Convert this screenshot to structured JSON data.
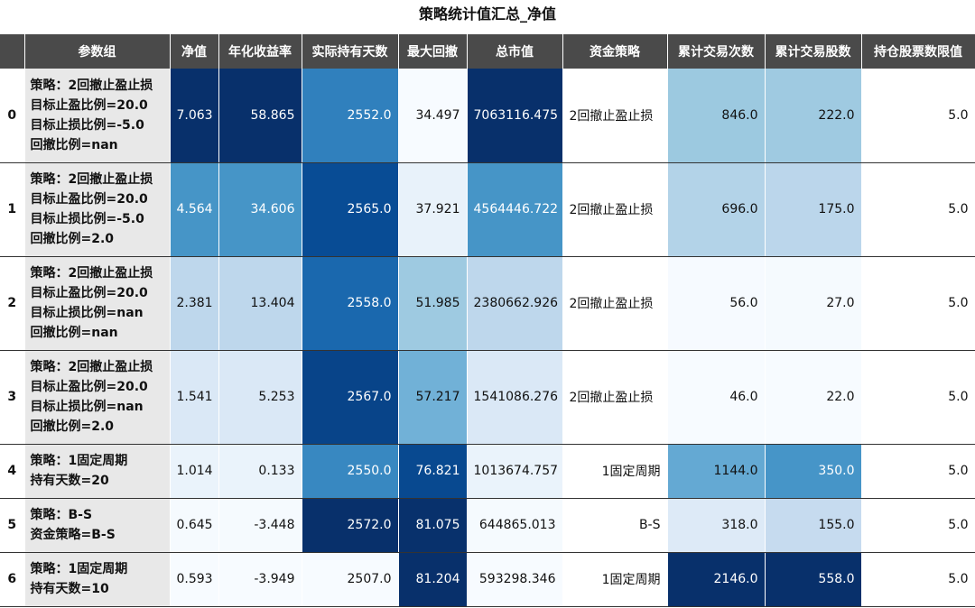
{
  "title": "策略统计值汇总_净值",
  "headers": [
    "",
    "参数组",
    "净值",
    "年化收益率",
    "实际持有天数",
    "最大回撤",
    "总市值",
    "资金策略",
    "累计交易次数",
    "累计交易股数",
    "持仓股票数限值"
  ],
  "rows": [
    {
      "index": "0",
      "params": [
        "策略：2回撤止盈止损",
        "目标止盈比例=20.0",
        "目标止损比例=-5.0",
        "回撤比例=nan"
      ],
      "cells": [
        "7.063",
        "58.865",
        "2552.0",
        "34.497",
        "7063116.475",
        "2回撤止盈止损",
        "846.0",
        "222.0",
        "5.0"
      ]
    },
    {
      "index": "1",
      "params": [
        "策略：2回撤止盈止损",
        "目标止盈比例=20.0",
        "目标止损比例=-5.0",
        "回撤比例=2.0"
      ],
      "cells": [
        "4.564",
        "34.606",
        "2565.0",
        "37.921",
        "4564446.722",
        "2回撤止盈止损",
        "696.0",
        "175.0",
        "5.0"
      ]
    },
    {
      "index": "2",
      "params": [
        "策略：2回撤止盈止损",
        "目标止盈比例=20.0",
        "目标止损比例=nan",
        "回撤比例=nan"
      ],
      "cells": [
        "2.381",
        "13.404",
        "2558.0",
        "51.985",
        "2380662.926",
        "2回撤止盈止损",
        "56.0",
        "27.0",
        "5.0"
      ]
    },
    {
      "index": "3",
      "params": [
        "策略：2回撤止盈止损",
        "目标止盈比例=20.0",
        "目标止损比例=nan",
        "回撤比例=2.0"
      ],
      "cells": [
        "1.541",
        "5.253",
        "2567.0",
        "57.217",
        "1541086.276",
        "2回撤止盈止损",
        "46.0",
        "22.0",
        "5.0"
      ]
    },
    {
      "index": "4",
      "params": [
        "策略：1固定周期",
        "持有天数=20"
      ],
      "cells": [
        "1.014",
        "0.133",
        "2550.0",
        "76.821",
        "1013674.757",
        "1固定周期",
        "1144.0",
        "350.0",
        "5.0"
      ]
    },
    {
      "index": "5",
      "params": [
        "策略：B-S",
        "资金策略=B-S"
      ],
      "cells": [
        "0.645",
        "-3.448",
        "2572.0",
        "81.075",
        "644865.013",
        "B-S",
        "318.0",
        "155.0",
        "5.0"
      ]
    },
    {
      "index": "6",
      "params": [
        "策略：1固定周期",
        "持有天数=10"
      ],
      "cells": [
        "0.593",
        "-3.949",
        "2507.0",
        "81.204",
        "593298.346",
        "1固定周期",
        "2146.0",
        "558.0",
        "5.0"
      ]
    }
  ],
  "colors": {
    "header_bg": "#4a4a4a",
    "param_bg": "#e8e8e8",
    "heat_scale": [
      "#f7fbff",
      "#deebf7",
      "#c6dbef",
      "#9ecae1",
      "#6baed6",
      "#4292c6",
      "#2171b5",
      "#08519c",
      "#08306b"
    ]
  }
}
